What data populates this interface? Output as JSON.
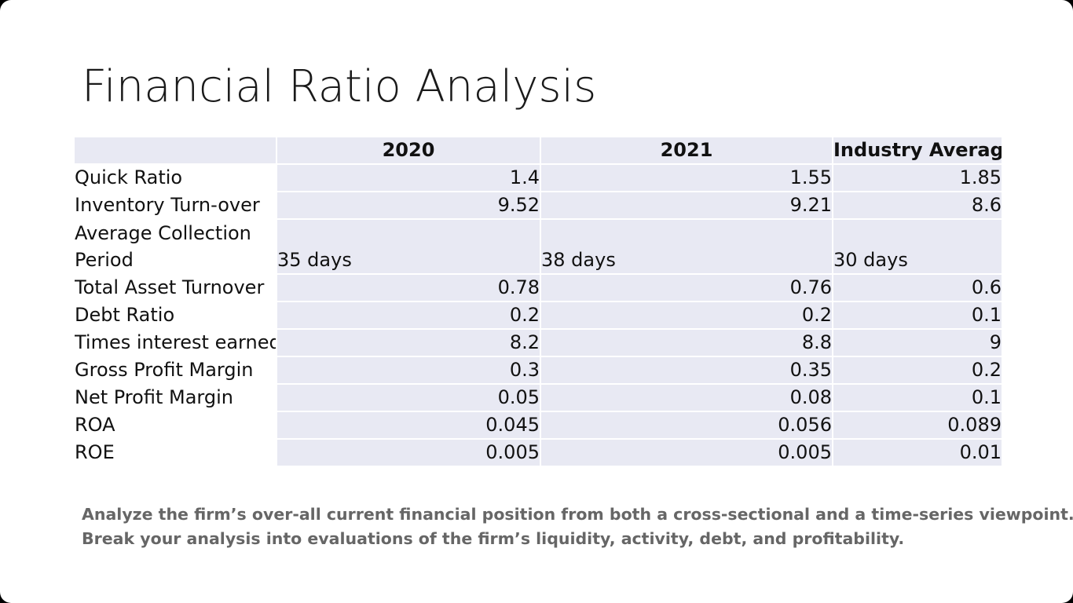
{
  "slide": {
    "title": "Financial Ratio Analysis",
    "table": {
      "headers": [
        "",
        "2020",
        "2021",
        "Industry Average"
      ],
      "rows": [
        {
          "label": "Quick Ratio",
          "values": [
            "1.4",
            "1.55",
            "1.85"
          ]
        },
        {
          "label": "Inventory Turn-over",
          "values": [
            "9.52",
            "9.21",
            "8.6"
          ]
        },
        {
          "label": "Average Collection Period",
          "values": [
            "35 days",
            "38 days",
            "30 days"
          ]
        },
        {
          "label": "Total Asset Turnover",
          "values": [
            "0.78",
            "0.76",
            "0.6"
          ]
        },
        {
          "label": "Debt Ratio",
          "values": [
            "0.2",
            "0.2",
            "0.1"
          ]
        },
        {
          "label": "Times interest earned",
          "values": [
            "8.2",
            "8.8",
            "9"
          ]
        },
        {
          "label": "Gross Profit Margin",
          "values": [
            "0.3",
            "0.35",
            "0.2"
          ]
        },
        {
          "label": "Net Profit Margin",
          "values": [
            "0.05",
            "0.08",
            "0.1"
          ]
        },
        {
          "label": "ROA",
          "values": [
            "0.045",
            "0.056",
            "0.089"
          ]
        },
        {
          "label": "ROE",
          "values": [
            "0.005",
            "0.005",
            "0.01"
          ]
        }
      ]
    },
    "instructions": [
      "Analyze the firm’s over-all current financial position from both a cross-sectional and a time-series viewpoint.",
      "Break your analysis into evaluations of the firm’s liquidity, activity, debt, and profitability."
    ]
  },
  "colors": {
    "cell_fill": "#e8e9f3",
    "title_text": "#1a1a1a",
    "note_text": "#666666"
  }
}
